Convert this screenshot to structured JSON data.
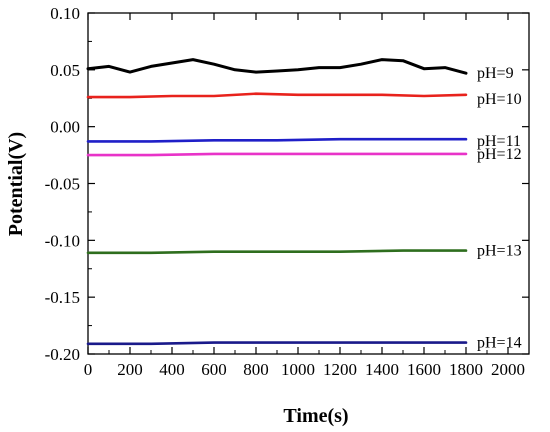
{
  "chart_data": {
    "type": "line",
    "title": "",
    "xlabel": "Time(s)",
    "ylabel": "Potential(V)",
    "xlim": [
      0,
      2100
    ],
    "ylim": [
      -0.2,
      0.1
    ],
    "xticks": [
      "0",
      "200",
      "400",
      "600",
      "800",
      "1000",
      "1200",
      "1400",
      "1600",
      "1800",
      "2000"
    ],
    "yticks": [
      "-0.20",
      "-0.15",
      "-0.10",
      "-0.05",
      "0.00",
      "0.05",
      "0.10"
    ],
    "grid": false,
    "legend": "inline-right",
    "series": [
      {
        "name": "pH=9",
        "color": "#000000",
        "x": [
          0,
          100,
          200,
          300,
          400,
          500,
          600,
          700,
          800,
          900,
          1000,
          1100,
          1200,
          1300,
          1400,
          1500,
          1600,
          1700,
          1800
        ],
        "y": [
          0.051,
          0.053,
          0.048,
          0.053,
          0.056,
          0.059,
          0.055,
          0.05,
          0.048,
          0.049,
          0.05,
          0.052,
          0.052,
          0.055,
          0.059,
          0.058,
          0.051,
          0.052,
          0.047
        ]
      },
      {
        "name": "pH=10",
        "color": "#e8221c",
        "x": [
          0,
          200,
          400,
          600,
          800,
          1000,
          1200,
          1400,
          1600,
          1800
        ],
        "y": [
          0.026,
          0.026,
          0.027,
          0.027,
          0.029,
          0.028,
          0.028,
          0.028,
          0.027,
          0.028
        ]
      },
      {
        "name": "pH=11",
        "color": "#1f1fc8",
        "x": [
          0,
          300,
          600,
          900,
          1200,
          1500,
          1800
        ],
        "y": [
          -0.013,
          -0.013,
          -0.012,
          -0.012,
          -0.011,
          -0.011,
          -0.011
        ]
      },
      {
        "name": "pH=12",
        "color": "#e833c8",
        "x": [
          0,
          300,
          600,
          900,
          1200,
          1500,
          1800
        ],
        "y": [
          -0.025,
          -0.025,
          -0.024,
          -0.024,
          -0.024,
          -0.024,
          -0.024
        ]
      },
      {
        "name": "pH=13",
        "color": "#2e6e1e",
        "x": [
          0,
          300,
          600,
          900,
          1200,
          1500,
          1800
        ],
        "y": [
          -0.111,
          -0.111,
          -0.11,
          -0.11,
          -0.11,
          -0.109,
          -0.109
        ]
      },
      {
        "name": "pH=14",
        "color": "#1a1a8a",
        "x": [
          0,
          300,
          600,
          900,
          1200,
          1500,
          1800
        ],
        "y": [
          -0.191,
          -0.191,
          -0.19,
          -0.19,
          -0.19,
          -0.19,
          -0.19
        ]
      }
    ]
  }
}
